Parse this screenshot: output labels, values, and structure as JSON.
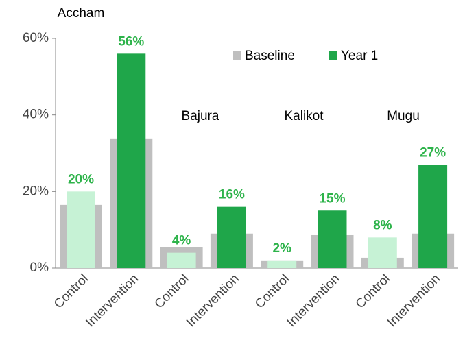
{
  "chart_data": {
    "type": "bar",
    "groups": [
      "Accham",
      "Bajura",
      "Kalikot",
      "Mugu"
    ],
    "categories": [
      "Control",
      "Intervention",
      "Control",
      "Intervention",
      "Control",
      "Intervention",
      "Control",
      "Intervention"
    ],
    "series": [
      {
        "name": "Baseline",
        "color": "#bfbfbf",
        "values": [
          16.5,
          33.7,
          5.5,
          9,
          2,
          8.6,
          2.7,
          9
        ]
      },
      {
        "name": "Year 1",
        "color": "#1fa64a",
        "colors": [
          "#c6f2d5",
          "#1fa64a",
          "#c6f2d5",
          "#1fa64a",
          "#c6f2d5",
          "#1fa64a",
          "#c6f2d5",
          "#1fa64a"
        ],
        "values": [
          20,
          56,
          4,
          16,
          2,
          15,
          8,
          27
        ],
        "value_labels": [
          "20%",
          "56%",
          "4%",
          "16%",
          "2%",
          "15%",
          "8%",
          "27%"
        ]
      }
    ],
    "ylim": [
      0,
      60
    ],
    "yticks": [
      {
        "value": 0,
        "label": "0%"
      },
      {
        "value": 20,
        "label": "20%"
      },
      {
        "value": 40,
        "label": "40%"
      },
      {
        "value": 60,
        "label": "60%"
      }
    ]
  }
}
